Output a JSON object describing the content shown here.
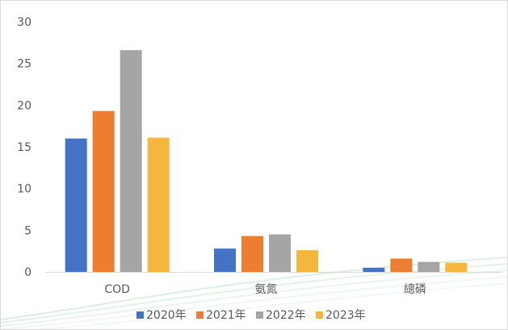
{
  "chart_data": {
    "type": "bar",
    "title": "",
    "xlabel": "",
    "ylabel": "",
    "categories": [
      "COD",
      "氨氮",
      "總磷"
    ],
    "series": [
      {
        "name": "2020年",
        "color": "#4472C4",
        "values": [
          16.0,
          2.8,
          0.5
        ]
      },
      {
        "name": "2021年",
        "color": "#ED7D31",
        "values": [
          19.3,
          4.3,
          1.6
        ]
      },
      {
        "name": "2022年",
        "color": "#A5A5A5",
        "values": [
          26.6,
          4.5,
          1.2
        ]
      },
      {
        "name": "2023年",
        "color": "#F4B63C",
        "values": [
          16.1,
          2.6,
          1.1
        ]
      }
    ],
    "ylim": [
      0,
      30
    ],
    "yticks": [
      "0",
      "5",
      "10",
      "15",
      "20",
      "25",
      "30"
    ],
    "grid": false,
    "legend_position": "bottom"
  }
}
